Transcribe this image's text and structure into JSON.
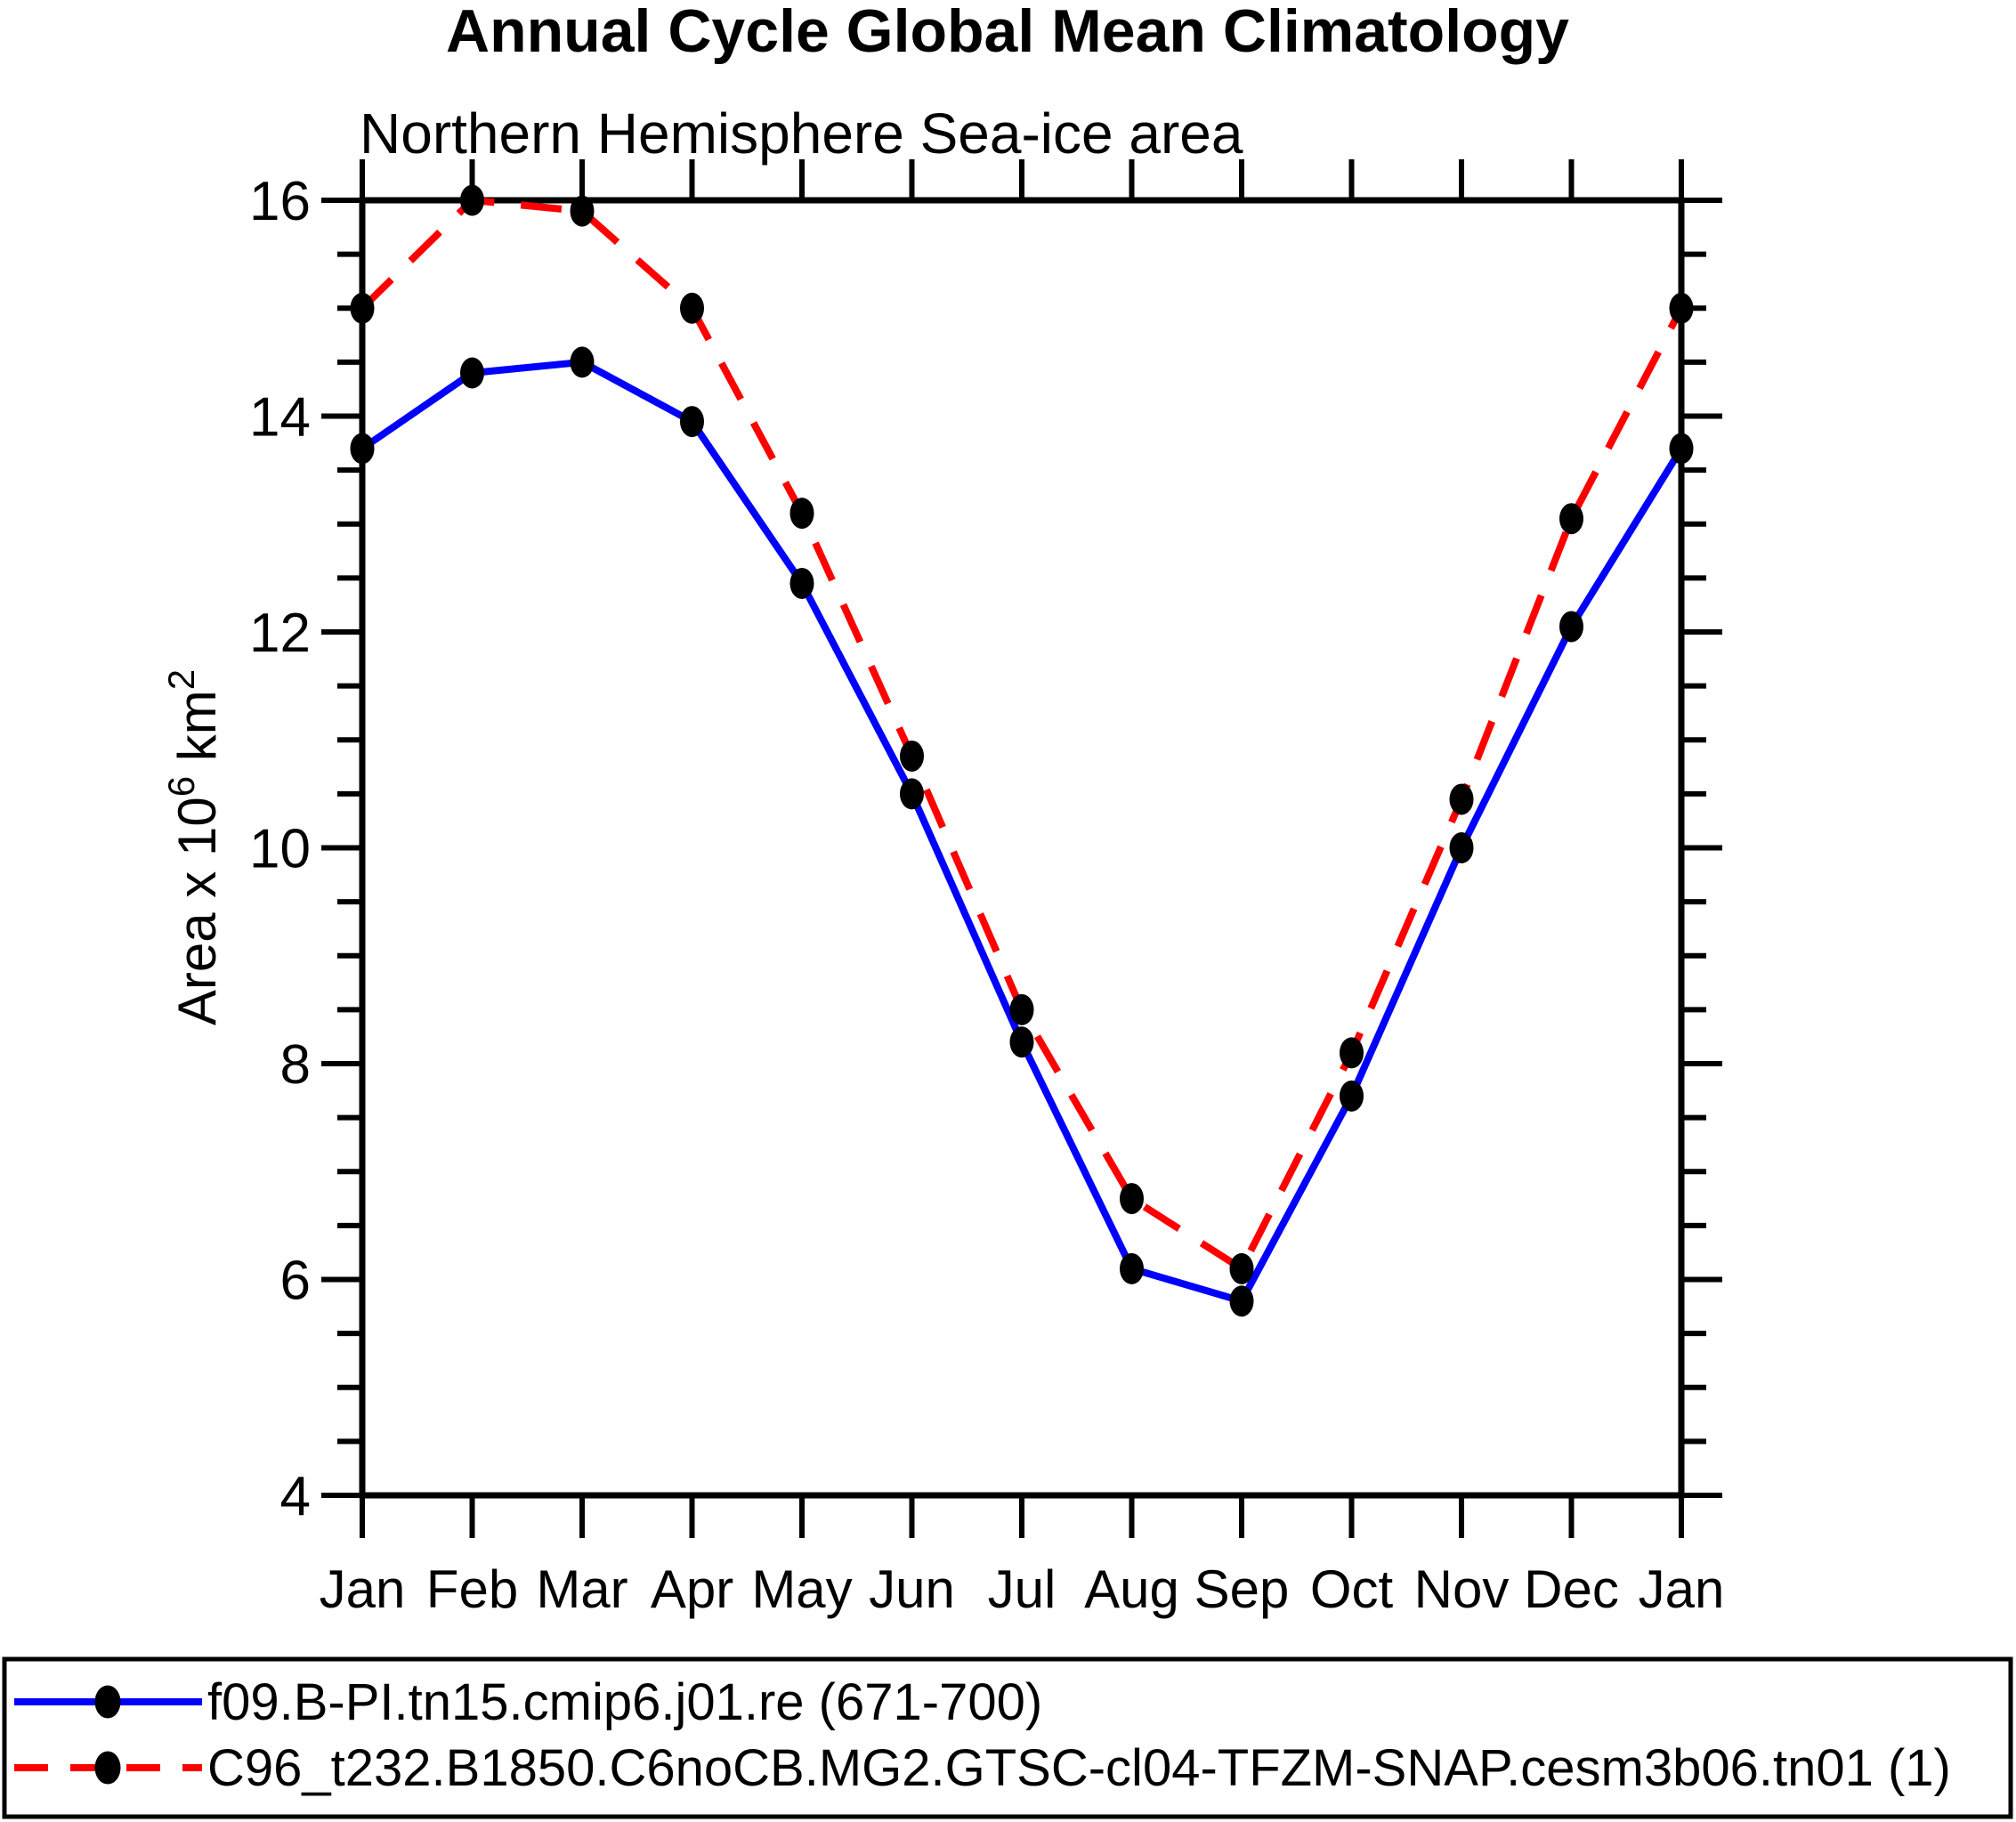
{
  "chart_data": {
    "type": "line",
    "title": "Annual Cycle Global Mean Climatology",
    "subtitle": "Northern Hemisphere Sea-ice area",
    "ylabel": {
      "base": "Area x 10",
      "sup1": "6",
      "mid": " km",
      "sup2": "2"
    },
    "categories": [
      "Jan",
      "Feb",
      "Mar",
      "Apr",
      "May",
      "Jun",
      "Jul",
      "Aug",
      "Sep",
      "Oct",
      "Nov",
      "Dec",
      "Jan"
    ],
    "ylim": [
      4,
      16
    ],
    "y_major_ticks": [
      16,
      14,
      12,
      10,
      8,
      6,
      4
    ],
    "y_minor_step": 0.5,
    "grid": false,
    "legend_position": "bottom",
    "axis_color": "#000000",
    "marker_color": "#000000",
    "series": [
      {
        "name": "f09.B-PI.tn15.cmip6.j01.re (671-700)",
        "color": "#0000ff",
        "style": "solid",
        "values": [
          13.7,
          14.4,
          14.5,
          13.95,
          12.45,
          10.5,
          8.2,
          6.1,
          5.8,
          7.7,
          10.0,
          12.05,
          13.7
        ]
      },
      {
        "name": "C96_t232.B1850.C6noCB.MG2.GTSC-cl04-TFZM-SNAP.cesm3b06.tn01 (1)",
        "color": "#ff0000",
        "style": "dashed",
        "values": [
          15.0,
          16.0,
          15.9,
          15.0,
          13.1,
          10.85,
          8.5,
          6.75,
          6.1,
          8.1,
          10.45,
          13.05,
          15.0
        ]
      }
    ]
  }
}
